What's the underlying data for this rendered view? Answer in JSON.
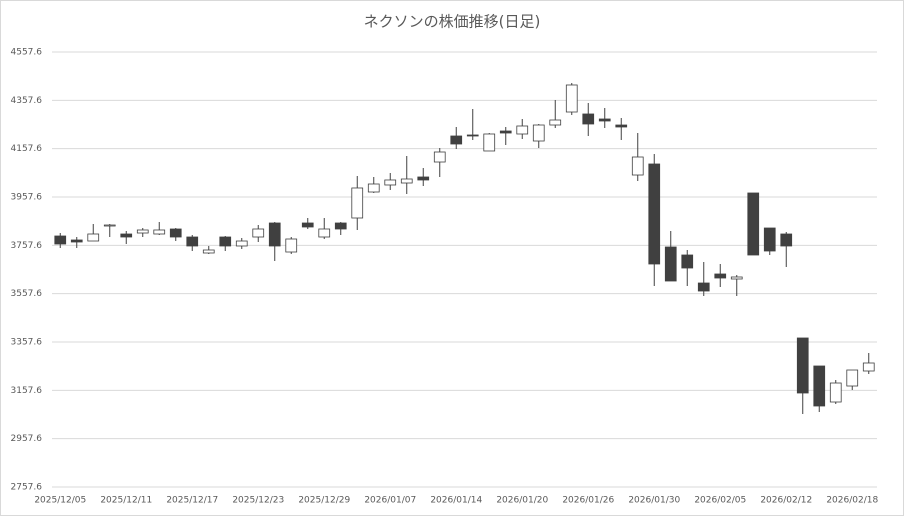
{
  "chart_data": {
    "type": "candlestick",
    "title": "ネクソンの株価推移(日足)",
    "categories": [
      "2025/12/05",
      null,
      null,
      null,
      "2025/12/11",
      null,
      null,
      null,
      "2025/12/17",
      null,
      null,
      null,
      "2025/12/23",
      null,
      null,
      null,
      "2025/12/29",
      null,
      null,
      null,
      "2026/01/07",
      null,
      null,
      null,
      "2026/01/14",
      null,
      null,
      null,
      "2026/01/20",
      null,
      null,
      null,
      "2026/01/26",
      null,
      null,
      null,
      "2026/01/30",
      null,
      null,
      null,
      "2026/02/05",
      null,
      null,
      null,
      "2026/02/12",
      null,
      null,
      null,
      "2026/02/18",
      null
    ],
    "open": [
      3796.2,
      3779.7,
      3775.5,
      3837.6,
      3804.5,
      3808.6,
      3804.5,
      3825.2,
      3792.1,
      3725.9,
      3792.1,
      3754.9,
      3792.1,
      3850.0,
      3730.0,
      3850.0,
      3792.1,
      3850.0,
      3870.7,
      3978.3,
      4007.3,
      4015.5,
      4040.4,
      4102.4,
      4210.0,
      4214.2,
      4148.0,
      4230.7,
      4218.3,
      4189.3,
      4255.5,
      4309.3,
      4301.1,
      4280.4,
      4255.5,
      4048.6,
      4094.2,
      3750.7,
      3717.6,
      3601.7,
      3639.0,
      3618.3,
      3974.2,
      3829.3,
      3804.5,
      3374.2,
      3258.3,
      3109.3,
      3175.5,
      3237.6
    ],
    "high": [
      3808.6,
      3792.1,
      3845.9,
      3845.9,
      3816.9,
      3829.3,
      3854.2,
      3829.3,
      3800.4,
      3754.9,
      3796.2,
      3788.0,
      3841.7,
      3854.2,
      3792.1,
      3870.7,
      3870.7,
      3854.2,
      4044.5,
      4040.4,
      4056.9,
      4127.3,
      4077.6,
      4160.4,
      4247.3,
      4321.8,
      4222.4,
      4247.3,
      4280.4,
      4259.7,
      4359.0,
      4429.3,
      4346.6,
      4325.9,
      4284.5,
      4222.4,
      4135.5,
      3816.9,
      3738.3,
      3688.6,
      3680.4,
      3634.8,
      3974.2,
      3829.3,
      3812.8,
      3374.2,
      3258.3,
      3200.4,
      3241.7,
      3312.1
    ],
    "low": [
      3746.6,
      3746.6,
      3775.5,
      3792.1,
      3763.1,
      3792.1,
      3800.4,
      3775.5,
      3734.2,
      3721.7,
      3734.2,
      3742.4,
      3771.4,
      3692.8,
      3721.7,
      3825.2,
      3783.8,
      3800.4,
      3821.1,
      3974.2,
      3986.6,
      3970.0,
      4003.1,
      4040.4,
      4156.2,
      4193.5,
      4148.0,
      4172.8,
      4197.6,
      4160.4,
      4243.1,
      4296.9,
      4210.0,
      4243.1,
      4193.5,
      4023.8,
      3589.3,
      3610.0,
      3589.3,
      3548.0,
      3585.2,
      3548.0,
      3717.6,
      3717.6,
      3668.0,
      3059.7,
      3067.9,
      3101.0,
      3159.0,
      3225.2
    ],
    "close": [
      3763.1,
      3771.4,
      3804.5,
      3841.7,
      3792.1,
      3821.1,
      3821.1,
      3792.1,
      3754.9,
      3738.3,
      3754.9,
      3775.5,
      3825.2,
      3754.9,
      3783.8,
      3833.5,
      3825.2,
      3825.2,
      3994.9,
      4011.4,
      4028.0,
      4032.1,
      4028.0,
      4143.8,
      4176.9,
      4210.0,
      4218.3,
      4222.4,
      4251.4,
      4255.5,
      4276.2,
      4421.1,
      4259.7,
      4272.1,
      4247.3,
      4123.1,
      3680.4,
      3610.0,
      3663.8,
      3568.6,
      3622.4,
      3626.6,
      3717.6,
      3734.2,
      3754.9,
      3146.6,
      3092.8,
      3187.9,
      3241.7,
      3270.7
    ],
    "up_color": "#ffffff",
    "down_color": "#404040",
    "edge_color": "#404040",
    "ylim": [
      2757.6,
      4557.6
    ],
    "yticks": [
      2757.6,
      2957.6,
      3157.6,
      3357.6,
      3557.6,
      3757.6,
      3957.6,
      4157.6,
      4357.6,
      4557.6
    ],
    "grid": true
  }
}
